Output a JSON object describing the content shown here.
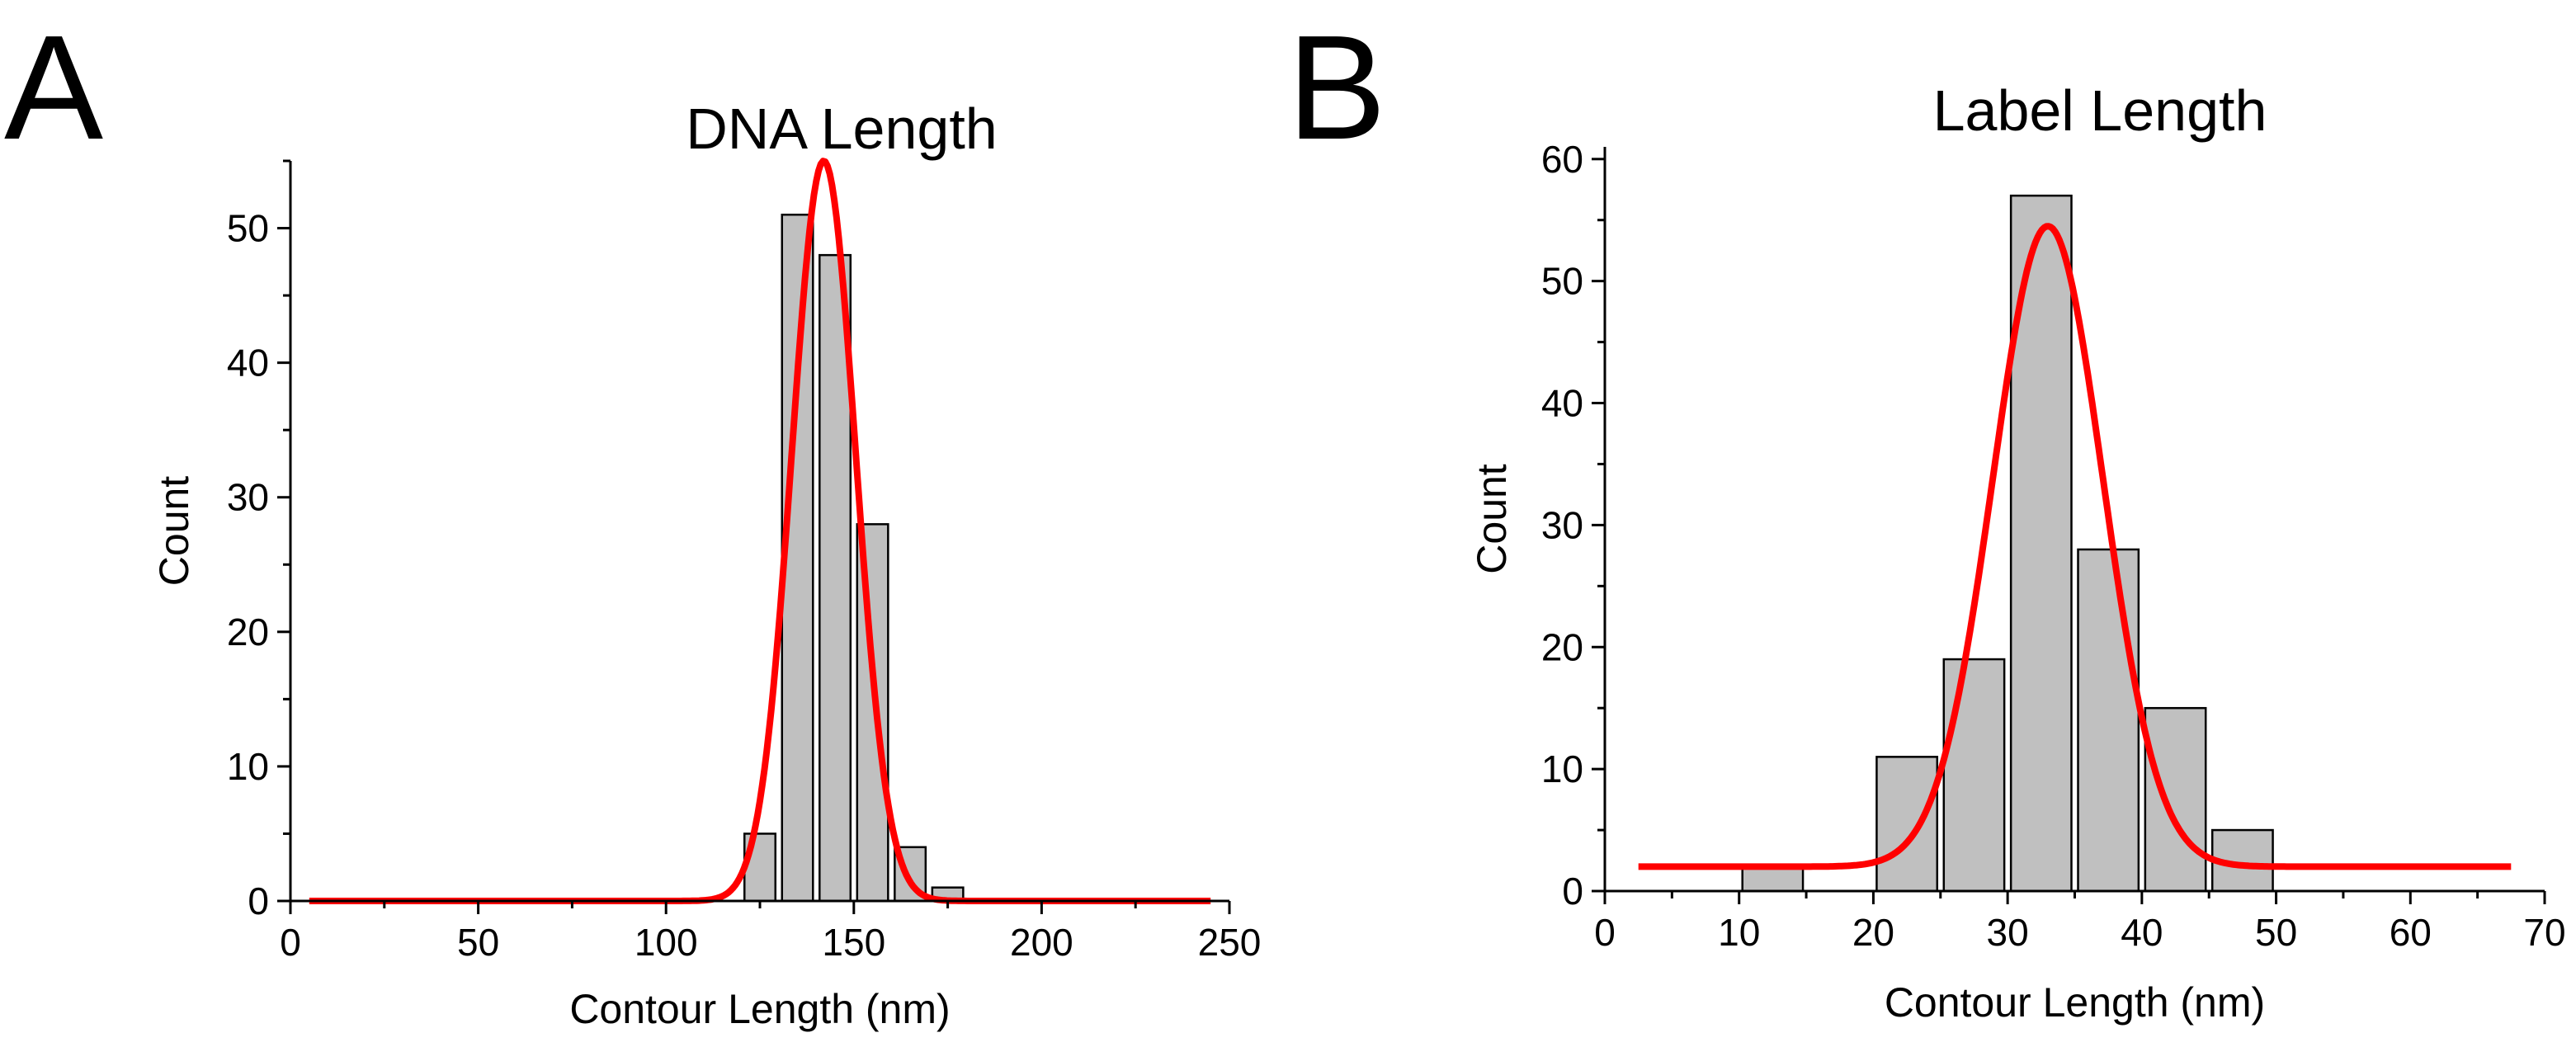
{
  "panels": [
    "A",
    "B"
  ],
  "chart_data": [
    {
      "type": "bar",
      "title": "DNA Length",
      "xlabel": "Contour Length (nm)",
      "ylabel": "Count",
      "xlim": [
        0,
        250
      ],
      "ylim": [
        0,
        55
      ],
      "xticks": [
        0,
        50,
        100,
        150,
        200,
        250
      ],
      "yticks": [
        0,
        10,
        20,
        30,
        40,
        50
      ],
      "bin_width": 10,
      "bars": [
        {
          "center": 125,
          "value": 5
        },
        {
          "center": 135,
          "value": 51
        },
        {
          "center": 145,
          "value": 48
        },
        {
          "center": 155,
          "value": 28
        },
        {
          "center": 165,
          "value": 4
        },
        {
          "center": 175,
          "value": 1
        }
      ],
      "fit": {
        "type": "gaussian",
        "baseline": 0,
        "amplitude": 55,
        "mean": 142,
        "sigma": 8.5,
        "x_range": [
          5,
          245
        ],
        "color": "#ff0000"
      }
    },
    {
      "type": "bar",
      "title": "Label Length",
      "xlabel": "Contour Length (nm)",
      "ylabel": "Count",
      "xlim": [
        0,
        70
      ],
      "ylim": [
        0,
        61
      ],
      "xticks": [
        0,
        10,
        20,
        30,
        40,
        50,
        60,
        70
      ],
      "yticks": [
        0,
        10,
        20,
        30,
        40,
        50,
        60
      ],
      "bin_width": 5,
      "bars": [
        {
          "center": 12.5,
          "value": 2
        },
        {
          "center": 22.5,
          "value": 11
        },
        {
          "center": 27.5,
          "value": 19
        },
        {
          "center": 32.5,
          "value": 57
        },
        {
          "center": 37.5,
          "value": 28
        },
        {
          "center": 42.5,
          "value": 15
        },
        {
          "center": 47.5,
          "value": 5
        }
      ],
      "fit": {
        "type": "gaussian",
        "baseline": 2,
        "amplitude": 52.5,
        "mean": 33,
        "sigma": 4.1,
        "x_range": [
          2.5,
          67.5
        ],
        "color": "#ff0000"
      }
    }
  ]
}
